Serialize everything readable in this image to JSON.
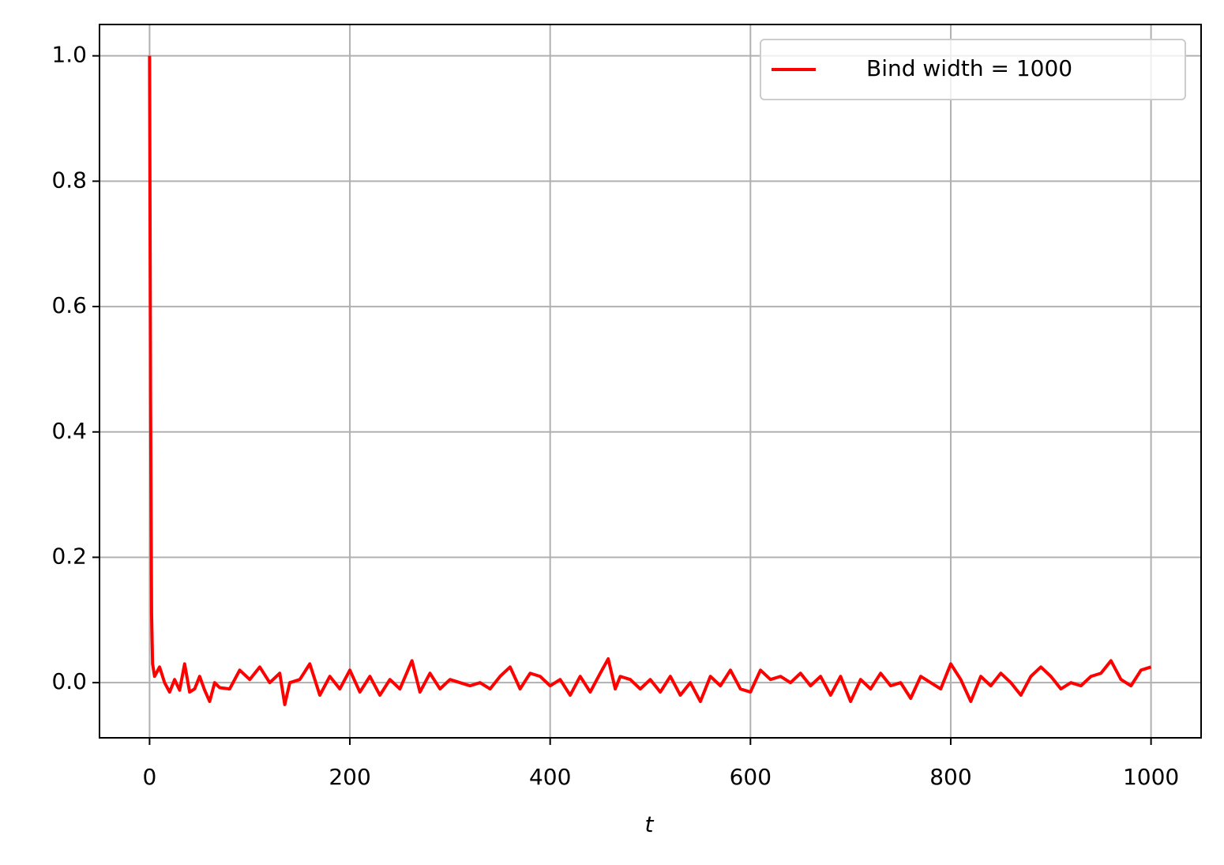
{
  "chart_data": {
    "type": "line",
    "x_label": "t",
    "x": [
      0,
      1,
      2,
      3,
      5,
      10,
      15,
      20,
      25,
      30,
      35,
      40,
      45,
      50,
      55,
      60,
      65,
      70,
      80,
      90,
      100,
      110,
      120,
      130,
      135,
      140,
      150,
      160,
      170,
      180,
      190,
      200,
      210,
      220,
      230,
      240,
      250,
      262,
      270,
      280,
      290,
      300,
      310,
      320,
      330,
      340,
      350,
      360,
      370,
      380,
      390,
      400,
      410,
      420,
      430,
      440,
      450,
      458,
      465,
      470,
      480,
      490,
      500,
      510,
      520,
      530,
      540,
      550,
      560,
      570,
      580,
      590,
      600,
      610,
      620,
      630,
      640,
      650,
      660,
      670,
      680,
      690,
      700,
      710,
      720,
      730,
      740,
      750,
      760,
      770,
      780,
      790,
      800,
      810,
      820,
      830,
      840,
      850,
      860,
      870,
      880,
      890,
      900,
      910,
      920,
      930,
      940,
      950,
      960,
      970,
      980,
      990,
      1000
    ],
    "series": [
      {
        "name": "Bind width = 1000",
        "color": "#ff0000",
        "values": [
          1.0,
          0.45,
          0.11,
          0.03,
          0.01,
          0.025,
          0.0,
          -0.015,
          0.005,
          -0.012,
          0.03,
          -0.015,
          -0.01,
          0.01,
          -0.012,
          -0.03,
          0.0,
          -0.008,
          -0.01,
          0.02,
          0.005,
          0.025,
          0.0,
          0.015,
          -0.035,
          0.0,
          0.005,
          0.03,
          -0.02,
          0.01,
          -0.01,
          0.02,
          -0.015,
          0.01,
          -0.02,
          0.005,
          -0.01,
          0.035,
          -0.015,
          0.015,
          -0.01,
          0.005,
          0.0,
          -0.005,
          0.0,
          -0.01,
          0.01,
          0.025,
          -0.01,
          0.015,
          0.01,
          -0.005,
          0.005,
          -0.02,
          0.01,
          -0.015,
          0.015,
          0.038,
          -0.01,
          0.01,
          0.005,
          -0.01,
          0.005,
          -0.015,
          0.01,
          -0.02,
          0.0,
          -0.03,
          0.01,
          -0.005,
          0.02,
          -0.01,
          -0.015,
          0.02,
          0.005,
          0.01,
          0.0,
          0.015,
          -0.005,
          0.01,
          -0.02,
          0.01,
          -0.03,
          0.005,
          -0.01,
          0.015,
          -0.005,
          0.0,
          -0.025,
          0.01,
          0.0,
          -0.01,
          0.03,
          0.005,
          -0.03,
          0.01,
          -0.005,
          0.015,
          0.0,
          -0.02,
          0.01,
          0.025,
          0.01,
          -0.01,
          0.0,
          -0.005,
          0.01,
          0.015,
          0.035,
          0.005,
          -0.005,
          0.02,
          0.025
        ]
      }
    ],
    "xlim": [
      -50,
      1050
    ],
    "ylim": [
      -0.088,
      1.05
    ],
    "xticks": [
      0,
      200,
      400,
      600,
      800,
      1000
    ],
    "yticks": [
      {
        "value": 0,
        "label": "0.0"
      },
      0.2,
      0.4,
      0.6,
      0.8,
      {
        "value": 1,
        "label": "1.0"
      }
    ],
    "grid": true,
    "legend": "upper right"
  }
}
